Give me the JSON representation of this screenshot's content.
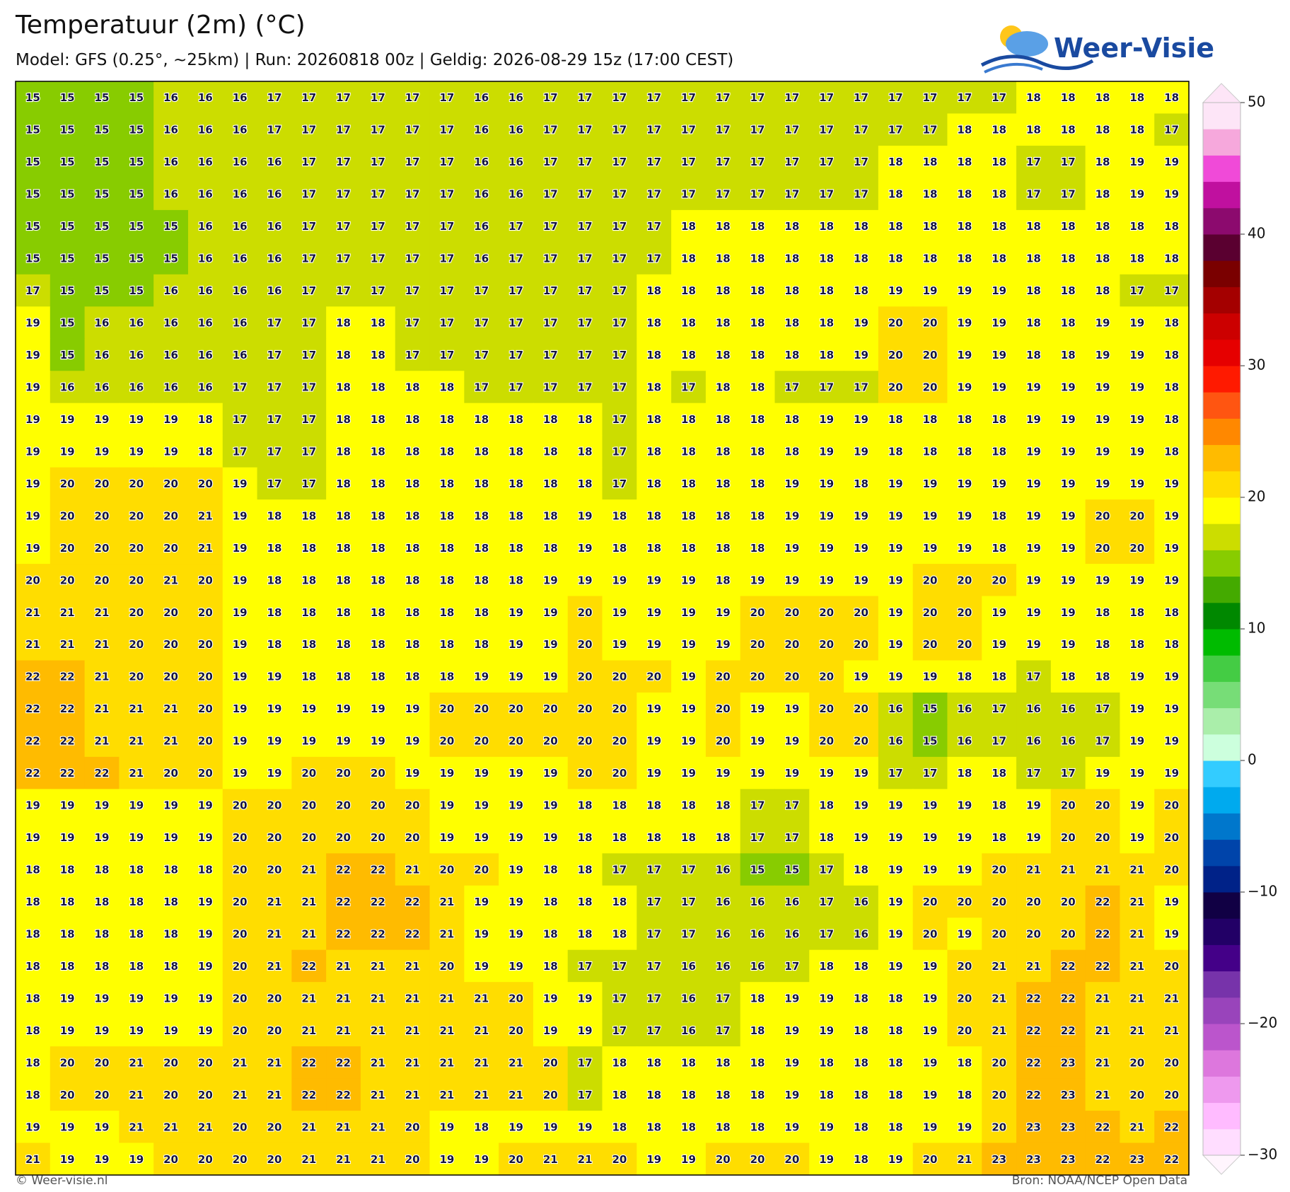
{
  "map": {
    "title": "Temperatuur (2m) (°C)",
    "subtitle": "Model: GFS (0.25°, ~25km)  |  Run: 20260818 00z  |  Geldig: 2026-08-29 15z (17:00 CEST)",
    "logo": "Weer-Visie",
    "footer_left": "© Weer-visie.nl",
    "footer_right": "Bron: NOAA/NCEP Open Data",
    "grid": [
      [
        15,
        15,
        15,
        15,
        16,
        16,
        16,
        17,
        17,
        17,
        17,
        17,
        17,
        16,
        16,
        17,
        17,
        17,
        17,
        17,
        17,
        17,
        17,
        17,
        17,
        17,
        17,
        17,
        17,
        18,
        18,
        18,
        18,
        18
      ],
      [
        15,
        15,
        15,
        15,
        16,
        16,
        16,
        17,
        17,
        17,
        17,
        17,
        17,
        16,
        16,
        17,
        17,
        17,
        17,
        17,
        17,
        17,
        17,
        17,
        17,
        17,
        17,
        18,
        18,
        18,
        18,
        18,
        18,
        17
      ],
      [
        15,
        15,
        15,
        15,
        16,
        16,
        16,
        16,
        17,
        17,
        17,
        17,
        17,
        16,
        16,
        17,
        17,
        17,
        17,
        17,
        17,
        17,
        17,
        17,
        17,
        18,
        18,
        18,
        18,
        17,
        17,
        18,
        19,
        19
      ],
      [
        15,
        15,
        15,
        15,
        16,
        16,
        16,
        16,
        17,
        17,
        17,
        17,
        17,
        16,
        16,
        17,
        17,
        17,
        17,
        17,
        17,
        17,
        17,
        17,
        17,
        18,
        18,
        18,
        18,
        17,
        17,
        18,
        19,
        19
      ],
      [
        15,
        15,
        15,
        15,
        15,
        16,
        16,
        16,
        17,
        17,
        17,
        17,
        17,
        16,
        17,
        17,
        17,
        17,
        17,
        18,
        18,
        18,
        18,
        18,
        18,
        18,
        18,
        18,
        18,
        18,
        18,
        18,
        18,
        18
      ],
      [
        15,
        15,
        15,
        15,
        15,
        16,
        16,
        16,
        17,
        17,
        17,
        17,
        17,
        16,
        17,
        17,
        17,
        17,
        17,
        18,
        18,
        18,
        18,
        18,
        18,
        18,
        18,
        18,
        18,
        18,
        18,
        18,
        18,
        18
      ],
      [
        17,
        15,
        15,
        15,
        16,
        16,
        16,
        16,
        17,
        17,
        17,
        17,
        17,
        17,
        17,
        17,
        17,
        17,
        18,
        18,
        18,
        18,
        18,
        18,
        18,
        19,
        19,
        19,
        19,
        18,
        18,
        18,
        17,
        17
      ],
      [
        19,
        15,
        16,
        16,
        16,
        16,
        16,
        17,
        17,
        18,
        18,
        17,
        17,
        17,
        17,
        17,
        17,
        17,
        18,
        18,
        18,
        18,
        18,
        18,
        19,
        20,
        20,
        19,
        19,
        18,
        18,
        19,
        19,
        18
      ],
      [
        19,
        15,
        16,
        16,
        16,
        16,
        16,
        17,
        17,
        18,
        18,
        17,
        17,
        17,
        17,
        17,
        17,
        17,
        18,
        18,
        18,
        18,
        18,
        18,
        19,
        20,
        20,
        19,
        19,
        18,
        18,
        19,
        19,
        18
      ],
      [
        19,
        16,
        16,
        16,
        16,
        16,
        17,
        17,
        17,
        18,
        18,
        18,
        18,
        17,
        17,
        17,
        17,
        17,
        18,
        17,
        18,
        18,
        17,
        17,
        17,
        20,
        20,
        19,
        19,
        19,
        19,
        19,
        19,
        18
      ],
      [
        19,
        19,
        19,
        19,
        19,
        18,
        17,
        17,
        17,
        18,
        18,
        18,
        18,
        18,
        18,
        18,
        18,
        17,
        18,
        18,
        18,
        18,
        18,
        19,
        19,
        18,
        18,
        18,
        18,
        19,
        19,
        19,
        19,
        18
      ],
      [
        19,
        19,
        19,
        19,
        19,
        18,
        17,
        17,
        17,
        18,
        18,
        18,
        18,
        18,
        18,
        18,
        18,
        17,
        18,
        18,
        18,
        18,
        18,
        19,
        19,
        18,
        18,
        18,
        18,
        19,
        19,
        19,
        19,
        18
      ],
      [
        19,
        20,
        20,
        20,
        20,
        20,
        19,
        17,
        17,
        18,
        18,
        18,
        18,
        18,
        18,
        18,
        18,
        17,
        18,
        18,
        18,
        18,
        19,
        19,
        18,
        19,
        19,
        19,
        19,
        19,
        19,
        19,
        19,
        19
      ],
      [
        19,
        20,
        20,
        20,
        20,
        21,
        19,
        18,
        18,
        18,
        18,
        18,
        18,
        18,
        18,
        18,
        19,
        18,
        18,
        18,
        18,
        18,
        19,
        19,
        19,
        19,
        19,
        19,
        18,
        19,
        19,
        20,
        20,
        19
      ],
      [
        19,
        20,
        20,
        20,
        20,
        21,
        19,
        18,
        18,
        18,
        18,
        18,
        18,
        18,
        18,
        18,
        19,
        18,
        18,
        18,
        18,
        18,
        19,
        19,
        19,
        19,
        19,
        19,
        18,
        19,
        19,
        20,
        20,
        19
      ],
      [
        20,
        20,
        20,
        20,
        21,
        20,
        19,
        18,
        18,
        18,
        18,
        18,
        18,
        18,
        18,
        19,
        19,
        19,
        19,
        19,
        18,
        19,
        19,
        19,
        19,
        19,
        20,
        20,
        20,
        19,
        19,
        19,
        19,
        19
      ],
      [
        21,
        21,
        21,
        20,
        20,
        20,
        19,
        18,
        18,
        18,
        18,
        18,
        18,
        18,
        19,
        19,
        20,
        19,
        19,
        19,
        19,
        20,
        20,
        20,
        20,
        19,
        20,
        20,
        19,
        19,
        19,
        18,
        18,
        18
      ],
      [
        21,
        21,
        21,
        20,
        20,
        20,
        19,
        18,
        18,
        18,
        18,
        18,
        18,
        18,
        19,
        19,
        20,
        19,
        19,
        19,
        19,
        20,
        20,
        20,
        20,
        19,
        20,
        20,
        19,
        19,
        19,
        18,
        18,
        18
      ],
      [
        22,
        22,
        21,
        20,
        20,
        20,
        19,
        19,
        18,
        18,
        18,
        18,
        18,
        19,
        19,
        19,
        20,
        20,
        20,
        19,
        20,
        20,
        20,
        20,
        19,
        19,
        19,
        18,
        18,
        17,
        18,
        18,
        19,
        19
      ],
      [
        22,
        22,
        21,
        21,
        21,
        20,
        19,
        19,
        19,
        19,
        19,
        19,
        20,
        20,
        20,
        20,
        20,
        20,
        19,
        19,
        20,
        19,
        19,
        20,
        20,
        16,
        15,
        16,
        17,
        16,
        16,
        17,
        19,
        19
      ],
      [
        22,
        22,
        21,
        21,
        21,
        20,
        19,
        19,
        19,
        19,
        19,
        19,
        20,
        20,
        20,
        20,
        20,
        20,
        19,
        19,
        20,
        19,
        19,
        20,
        20,
        16,
        15,
        16,
        17,
        16,
        16,
        17,
        19,
        19
      ],
      [
        22,
        22,
        22,
        21,
        20,
        20,
        19,
        19,
        20,
        20,
        20,
        19,
        19,
        19,
        19,
        19,
        20,
        20,
        19,
        19,
        19,
        19,
        19,
        19,
        19,
        17,
        17,
        18,
        18,
        17,
        17,
        19,
        19,
        19
      ],
      [
        19,
        19,
        19,
        19,
        19,
        19,
        20,
        20,
        20,
        20,
        20,
        20,
        19,
        19,
        19,
        19,
        18,
        18,
        18,
        18,
        18,
        17,
        17,
        18,
        19,
        19,
        19,
        19,
        18,
        19,
        20,
        20,
        19,
        20
      ],
      [
        19,
        19,
        19,
        19,
        19,
        19,
        20,
        20,
        20,
        20,
        20,
        20,
        19,
        19,
        19,
        19,
        18,
        18,
        18,
        18,
        18,
        17,
        17,
        18,
        19,
        19,
        19,
        19,
        18,
        19,
        20,
        20,
        19,
        20
      ],
      [
        18,
        18,
        18,
        18,
        18,
        18,
        20,
        20,
        21,
        22,
        22,
        21,
        20,
        20,
        19,
        18,
        18,
        17,
        17,
        17,
        16,
        15,
        15,
        17,
        18,
        19,
        19,
        19,
        20,
        21,
        21,
        21,
        21,
        20
      ],
      [
        18,
        18,
        18,
        18,
        18,
        19,
        20,
        21,
        21,
        22,
        22,
        22,
        21,
        19,
        19,
        18,
        18,
        18,
        17,
        17,
        16,
        16,
        16,
        17,
        16,
        19,
        20,
        20,
        20,
        20,
        20,
        22,
        21,
        19
      ],
      [
        18,
        18,
        18,
        18,
        18,
        19,
        20,
        21,
        21,
        22,
        22,
        22,
        21,
        19,
        19,
        18,
        18,
        18,
        17,
        17,
        16,
        16,
        16,
        17,
        16,
        19,
        20,
        19,
        20,
        20,
        20,
        22,
        21,
        19
      ],
      [
        18,
        18,
        18,
        18,
        18,
        19,
        20,
        21,
        22,
        21,
        21,
        21,
        20,
        19,
        19,
        18,
        17,
        17,
        17,
        16,
        16,
        16,
        17,
        18,
        18,
        19,
        19,
        20,
        21,
        21,
        22,
        22,
        21,
        20
      ],
      [
        18,
        19,
        19,
        19,
        19,
        19,
        20,
        20,
        21,
        21,
        21,
        21,
        21,
        21,
        20,
        19,
        19,
        17,
        17,
        16,
        17,
        18,
        19,
        19,
        18,
        18,
        19,
        20,
        21,
        22,
        22,
        21,
        21,
        21
      ],
      [
        18,
        19,
        19,
        19,
        19,
        19,
        20,
        20,
        21,
        21,
        21,
        21,
        21,
        21,
        20,
        19,
        19,
        17,
        17,
        16,
        17,
        18,
        19,
        19,
        18,
        18,
        19,
        20,
        21,
        22,
        22,
        21,
        21,
        21
      ],
      [
        18,
        20,
        20,
        21,
        20,
        20,
        21,
        21,
        22,
        22,
        21,
        21,
        21,
        21,
        21,
        20,
        17,
        18,
        18,
        18,
        18,
        18,
        19,
        18,
        18,
        18,
        19,
        18,
        20,
        22,
        23,
        21,
        20,
        20
      ],
      [
        18,
        20,
        20,
        21,
        20,
        20,
        21,
        21,
        22,
        22,
        21,
        21,
        21,
        21,
        21,
        20,
        17,
        18,
        18,
        18,
        18,
        18,
        19,
        18,
        18,
        18,
        19,
        18,
        20,
        22,
        23,
        21,
        20,
        20
      ],
      [
        19,
        19,
        19,
        21,
        21,
        21,
        20,
        20,
        21,
        21,
        21,
        20,
        19,
        18,
        19,
        19,
        19,
        18,
        18,
        18,
        18,
        18,
        19,
        19,
        18,
        18,
        19,
        19,
        20,
        23,
        23,
        22,
        21,
        22
      ],
      [
        21,
        19,
        19,
        19,
        20,
        20,
        20,
        20,
        21,
        21,
        21,
        20,
        19,
        19,
        20,
        21,
        21,
        20,
        19,
        19,
        20,
        20,
        20,
        19,
        18,
        19,
        20,
        21,
        23,
        23,
        23,
        22,
        23,
        22
      ]
    ],
    "colorbar": {
      "lim": [
        -30,
        50
      ],
      "ticks": [
        50,
        40,
        30,
        20,
        10,
        0,
        {
          "value": -10,
          "label": "−10"
        },
        {
          "value": -20,
          "label": "−20"
        },
        {
          "value": -30,
          "label": "−30"
        }
      ],
      "colors": [
        "#ffddff",
        "#ffbbff",
        "#ee99ee",
        "#dd77dd",
        "#bb55cc",
        "#9944bb",
        "#7733aa",
        "#440088",
        "#220066",
        "#110044",
        "#002288",
        "#0044aa",
        "#0077cc",
        "#00aaee",
        "#33ccff",
        "#ccffdd",
        "#aaeeaa",
        "#77dd77",
        "#44cc44",
        "#00bb00",
        "#008800",
        "#44aa00",
        "#88cc00",
        "#ccdd00",
        "#ffff00",
        "#ffdd00",
        "#ffbb00",
        "#ff8800",
        "#ff5511",
        "#ff1a00",
        "#e60000",
        "#cc0000",
        "#a40000",
        "#7a0000",
        "#5a0030",
        "#8c0a6e",
        "#c0109f",
        "#f04ad8",
        "#f6a8dc",
        "#fde5f7"
      ]
    }
  }
}
